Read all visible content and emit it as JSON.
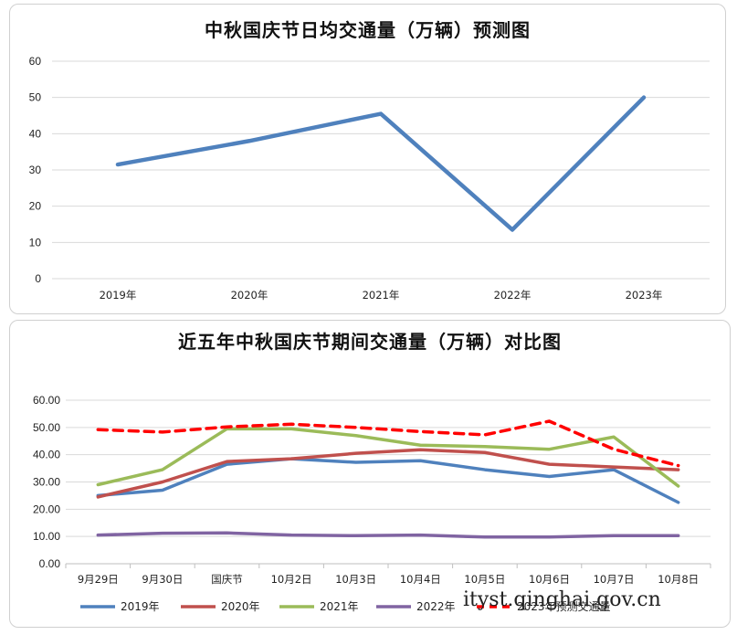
{
  "chart_data": [
    {
      "type": "line",
      "title": "中秋国庆节日均交通量（万辆）预测图",
      "categories": [
        "2019年",
        "2020年",
        "2021年",
        "2022年",
        "2023年"
      ],
      "series": [
        {
          "values": [
            31.5,
            38,
            45.5,
            13.5,
            50
          ]
        }
      ],
      "ylim": [
        0,
        60
      ],
      "yticks": [
        "0",
        "10",
        "20",
        "30",
        "40",
        "50",
        "60"
      ],
      "grid": true,
      "colors": [
        "#4f81bd"
      ]
    },
    {
      "type": "line",
      "title": "近五年中秋国庆节期间交通量（万辆）对比图",
      "categories": [
        "9月29日",
        "9月30日",
        "国庆节",
        "10月2日",
        "10月3日",
        "10月4日",
        "10月5日",
        "10月6日",
        "10月7日",
        "10月8日"
      ],
      "series": [
        {
          "name": "2019年",
          "color": "#4f81bd",
          "dash": false,
          "values": [
            25,
            27,
            36.5,
            38.5,
            37.2,
            37.8,
            34.5,
            32,
            34.5,
            22.5
          ]
        },
        {
          "name": "2020年",
          "color": "#c0504d",
          "dash": false,
          "values": [
            24.5,
            30,
            37.5,
            38.5,
            40.5,
            41.8,
            40.8,
            36.5,
            35.5,
            34.5
          ]
        },
        {
          "name": "2021年",
          "color": "#9bbb59",
          "dash": false,
          "values": [
            29,
            34.5,
            49.5,
            49.5,
            47,
            43.5,
            43,
            42,
            46.5,
            28.5
          ]
        },
        {
          "name": "2022年",
          "color": "#8064a2",
          "dash": false,
          "values": [
            10.5,
            11.2,
            11.3,
            10.5,
            10.3,
            10.5,
            9.8,
            9.8,
            10.3,
            10.3
          ]
        },
        {
          "name": "2023年预测交通量",
          "color": "#ff0000",
          "dash": true,
          "values": [
            49.2,
            48.3,
            50.2,
            51.2,
            50,
            48.5,
            47.3,
            52.3,
            42,
            36
          ]
        }
      ],
      "ylim": [
        0,
        60
      ],
      "yticks": [
        "0.00",
        "10.00",
        "20.00",
        "30.00",
        "40.00",
        "50.00",
        "60.00"
      ],
      "grid": true,
      "legend": "bottom"
    }
  ],
  "watermark": "ityst.qinghai.gov.cn"
}
